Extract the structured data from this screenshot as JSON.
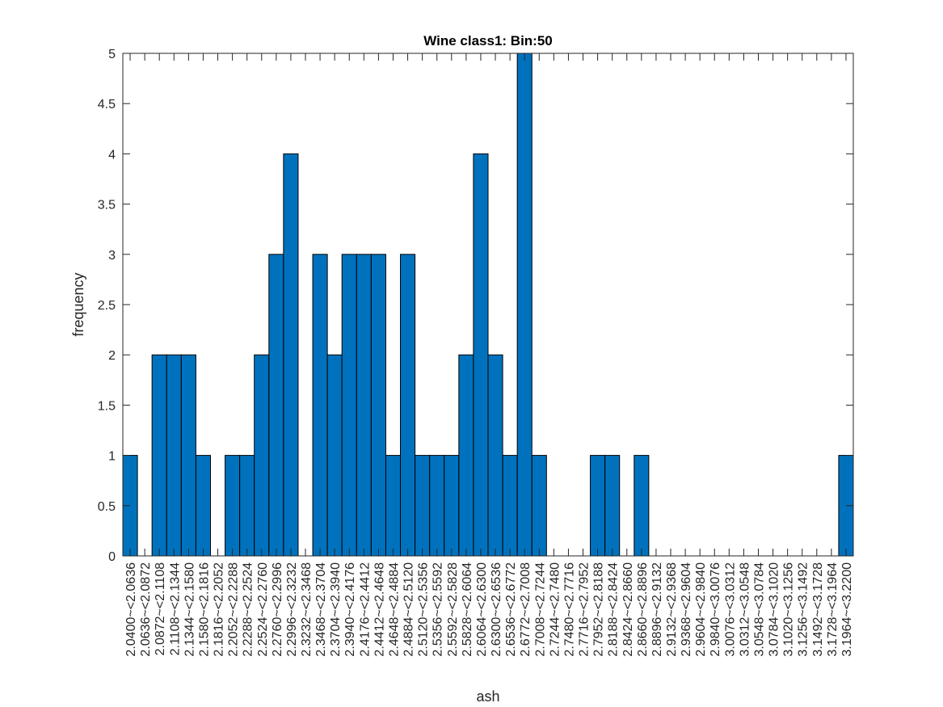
{
  "colors": {
    "bar_fill": "#0072BD",
    "bar_edge": "#000000",
    "axis": "#262626",
    "background": "#ffffff"
  },
  "chart_data": {
    "type": "bar",
    "title": "Wine class1: Bin:50",
    "xlabel": "ash",
    "ylabel": "frequency",
    "ylim": [
      0,
      5
    ],
    "yticks": [
      "0",
      "0.5",
      "1",
      "1.5",
      "2",
      "2.5",
      "3",
      "3.5",
      "4",
      "4.5",
      "5"
    ],
    "grid": false,
    "legend": "none",
    "categories": [
      "2.0400~<2.0636",
      "2.0636~<2.0872",
      "2.0872~<2.1108",
      "2.1108~<2.1344",
      "2.1344~<2.1580",
      "2.1580~<2.1816",
      "2.1816~<2.2052",
      "2.2052~<2.2288",
      "2.2288~<2.2524",
      "2.2524~<2.2760",
      "2.2760~<2.2996",
      "2.2996~<2.3232",
      "2.3232~<2.3468",
      "2.3468~<2.3704",
      "2.3704~<2.3940",
      "2.3940~<2.4176",
      "2.4176~<2.4412",
      "2.4412~<2.4648",
      "2.4648~<2.4884",
      "2.4884~<2.5120",
      "2.5120~<2.5356",
      "2.5356~<2.5592",
      "2.5592~<2.5828",
      "2.5828~<2.6064",
      "2.6064~<2.6300",
      "2.6300~<2.6536",
      "2.6536~<2.6772",
      "2.6772~<2.7008",
      "2.7008~<2.7244",
      "2.7244~<2.7480",
      "2.7480~<2.7716",
      "2.7716~<2.7952",
      "2.7952~<2.8188",
      "2.8188~<2.8424",
      "2.8424~<2.8660",
      "2.8660~<2.8896",
      "2.8896~<2.9132",
      "2.9132~<2.9368",
      "2.9368~<2.9604",
      "2.9604~<2.9840",
      "2.9840~<3.0076",
      "3.0076~<3.0312",
      "3.0312~<3.0548",
      "3.0548~<3.0784",
      "3.0784~<3.1020",
      "3.1020~<3.1256",
      "3.1256~<3.1492",
      "3.1492~<3.1728",
      "3.1728~<3.1964",
      "3.1964~<3.2200"
    ],
    "values": [
      1,
      0,
      2,
      2,
      2,
      1,
      0,
      1,
      1,
      2,
      3,
      4,
      0,
      3,
      2,
      3,
      3,
      3,
      1,
      3,
      1,
      1,
      1,
      2,
      4,
      2,
      1,
      5,
      1,
      0,
      0,
      0,
      1,
      1,
      0,
      1,
      0,
      0,
      0,
      0,
      0,
      0,
      0,
      0,
      0,
      0,
      0,
      0,
      0,
      1
    ]
  }
}
